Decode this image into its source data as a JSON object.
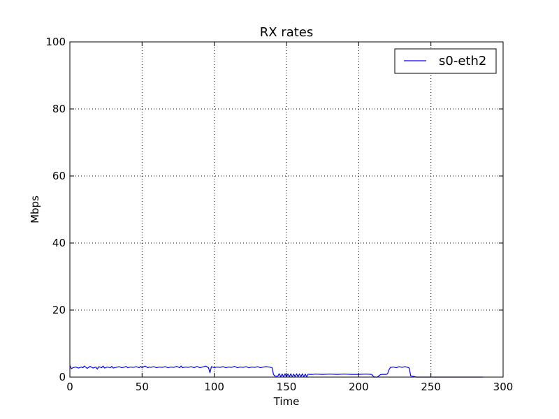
{
  "chart_data": {
    "type": "line",
    "title": "RX rates",
    "xlabel": "Time",
    "ylabel": "Mbps",
    "xlim": [
      0,
      300
    ],
    "ylim": [
      0,
      100
    ],
    "xticks": [
      0,
      50,
      100,
      150,
      200,
      250,
      300
    ],
    "yticks": [
      0,
      20,
      40,
      60,
      80,
      100
    ],
    "grid": true,
    "grid_style": "dotted",
    "legend_position": "top-right",
    "series": [
      {
        "name": "s0-eth2",
        "color": "#0000ff",
        "x": [
          0,
          1,
          2,
          4,
          6,
          8,
          9,
          10,
          12,
          13,
          14,
          16,
          18,
          19,
          20,
          22,
          23,
          24,
          26,
          28,
          29,
          30,
          32,
          34,
          36,
          38,
          39,
          40,
          42,
          44,
          46,
          48,
          49,
          50,
          52,
          54,
          55,
          56,
          58,
          60,
          62,
          64,
          66,
          68,
          70,
          72,
          74,
          76,
          77,
          78,
          80,
          82,
          84,
          86,
          88,
          90,
          92,
          94,
          96,
          97,
          98,
          100,
          102,
          104,
          106,
          108,
          110,
          112,
          114,
          116,
          118,
          120,
          122,
          124,
          126,
          128,
          130,
          132,
          134,
          136,
          138,
          140,
          141,
          142,
          144,
          145,
          146,
          147,
          148,
          149,
          150,
          151,
          152,
          153,
          154,
          155,
          156,
          157,
          158,
          159,
          160,
          161,
          162,
          163,
          164,
          165,
          166,
          168,
          170,
          175,
          180,
          185,
          190,
          195,
          200,
          205,
          209,
          210,
          211,
          212,
          213,
          214,
          215,
          216,
          218,
          219,
          220,
          221,
          222,
          224,
          226,
          228,
          230,
          232,
          234,
          235,
          236,
          240,
          250,
          260,
          270,
          280,
          286
        ],
        "values": [
          3.5,
          2.5,
          2.8,
          3.0,
          2.7,
          3.0,
          2.8,
          3.3,
          2.6,
          2.9,
          3.2,
          2.7,
          3.0,
          2.4,
          3.1,
          2.8,
          3.3,
          2.7,
          3.0,
          2.8,
          3.2,
          2.7,
          2.9,
          3.1,
          2.8,
          3.0,
          3.2,
          2.8,
          3.0,
          2.9,
          3.1,
          2.8,
          3.2,
          2.8,
          3.3,
          2.8,
          3.0,
          2.9,
          3.1,
          2.8,
          3.0,
          2.9,
          3.1,
          2.8,
          3.0,
          2.9,
          3.2,
          2.8,
          3.3,
          2.8,
          3.0,
          2.9,
          3.1,
          2.8,
          3.2,
          2.8,
          3.0,
          3.3,
          2.8,
          1.3,
          3.1,
          2.8,
          3.0,
          2.9,
          3.1,
          2.8,
          3.0,
          2.9,
          3.2,
          2.8,
          3.0,
          2.9,
          3.1,
          2.8,
          3.0,
          2.9,
          3.1,
          2.8,
          3.0,
          3.1,
          3.0,
          2.8,
          0.8,
          0.3,
          0.3,
          1.0,
          0.1,
          0.9,
          0.1,
          1.0,
          0.1,
          0.9,
          0.1,
          1.0,
          0.1,
          0.9,
          0.1,
          1.0,
          0.1,
          0.9,
          0.1,
          1.0,
          0.1,
          0.9,
          0.1,
          0.9,
          0.8,
          0.8,
          0.9,
          0.8,
          0.9,
          0.8,
          0.9,
          0.8,
          0.8,
          0.9,
          0.8,
          0.3,
          0.0,
          0.0,
          0.0,
          0.4,
          0.7,
          0.8,
          0.8,
          0.8,
          1.0,
          2.2,
          2.9,
          3.0,
          2.8,
          3.1,
          2.9,
          3.1,
          2.9,
          2.7,
          0.4,
          0.0,
          0.0,
          0.0,
          0.0,
          0.0,
          0.0
        ]
      }
    ]
  }
}
